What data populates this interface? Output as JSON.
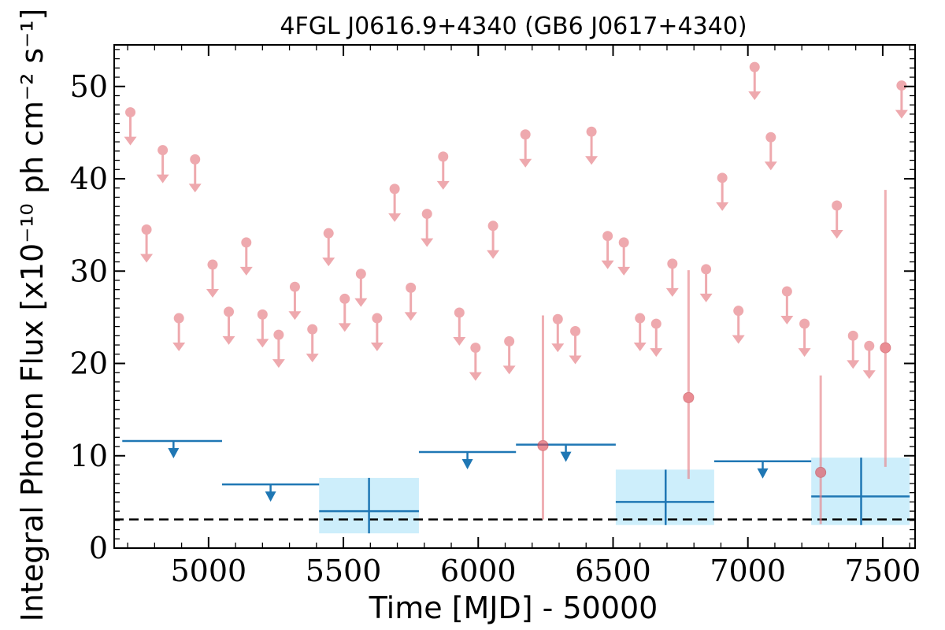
{
  "chart_data": {
    "type": "scatter",
    "title": "4FGL J0616.9+4340 (GB6 J0617+4340)",
    "xlabel": "Time [MJD] - 50000",
    "ylabel": "Integral Photon Flux [x10⁻¹⁰ ph cm⁻² s⁻¹]",
    "xlim": [
      4650,
      7620
    ],
    "ylim": [
      0,
      54.5
    ],
    "x_ticks": [
      5000,
      5500,
      6000,
      6500,
      7000,
      7500
    ],
    "y_ticks": [
      0,
      10,
      20,
      30,
      40,
      50
    ],
    "grid": false,
    "reference_line": {
      "y": 3.1,
      "style": "dashed",
      "color": "#000000"
    },
    "colors": {
      "short_bins": "#e8858c",
      "long_bins": "#1f77b4",
      "band_fill": "#cdeefb"
    },
    "series": [
      {
        "style": "upper_limit",
        "color": "#e8858c",
        "points": [
          {
            "x": 4710,
            "y": 47.2
          },
          {
            "x": 4770,
            "y": 34.5
          },
          {
            "x": 4830,
            "y": 43.1
          },
          {
            "x": 4890,
            "y": 24.9
          },
          {
            "x": 4950,
            "y": 42.1
          },
          {
            "x": 5015,
            "y": 30.7
          },
          {
            "x": 5075,
            "y": 25.6
          },
          {
            "x": 5140,
            "y": 33.1
          },
          {
            "x": 5200,
            "y": 25.3
          },
          {
            "x": 5260,
            "y": 23.1
          },
          {
            "x": 5320,
            "y": 28.3
          },
          {
            "x": 5385,
            "y": 23.7
          },
          {
            "x": 5445,
            "y": 34.1
          },
          {
            "x": 5505,
            "y": 27.0
          },
          {
            "x": 5565,
            "y": 29.7
          },
          {
            "x": 5625,
            "y": 24.9
          },
          {
            "x": 5690,
            "y": 38.9
          },
          {
            "x": 5750,
            "y": 28.2
          },
          {
            "x": 5810,
            "y": 36.2
          },
          {
            "x": 5870,
            "y": 42.4
          },
          {
            "x": 5930,
            "y": 25.5
          },
          {
            "x": 5990,
            "y": 21.7
          },
          {
            "x": 6055,
            "y": 34.9
          },
          {
            "x": 6115,
            "y": 22.4
          },
          {
            "x": 6175,
            "y": 44.8
          },
          {
            "x": 6295,
            "y": 24.8
          },
          {
            "x": 6360,
            "y": 23.5
          },
          {
            "x": 6420,
            "y": 45.1
          },
          {
            "x": 6480,
            "y": 33.8
          },
          {
            "x": 6540,
            "y": 33.1
          },
          {
            "x": 6600,
            "y": 24.9
          },
          {
            "x": 6660,
            "y": 24.3
          },
          {
            "x": 6720,
            "y": 30.8
          },
          {
            "x": 6845,
            "y": 30.2
          },
          {
            "x": 6905,
            "y": 40.1
          },
          {
            "x": 6965,
            "y": 25.7
          },
          {
            "x": 7025,
            "y": 52.1
          },
          {
            "x": 7085,
            "y": 44.5
          },
          {
            "x": 7145,
            "y": 27.8
          },
          {
            "x": 7210,
            "y": 24.3
          },
          {
            "x": 7330,
            "y": 37.1
          },
          {
            "x": 7390,
            "y": 23.0
          },
          {
            "x": 7450,
            "y": 21.9
          },
          {
            "x": 7570,
            "y": 50.1
          }
        ]
      },
      {
        "style": "detection",
        "color": "#e8858c",
        "points": [
          {
            "x": 6240,
            "y": 11.1,
            "yerr_low": 3.1,
            "yerr_high": 25.2
          },
          {
            "x": 6780,
            "y": 16.3,
            "yerr_low": 7.5,
            "yerr_high": 30.1
          },
          {
            "x": 7270,
            "y": 8.2,
            "yerr_low": 2.6,
            "yerr_high": 18.7
          },
          {
            "x": 7510,
            "y": 21.7,
            "yerr_low": 8.8,
            "yerr_high": 38.8
          }
        ]
      },
      {
        "style": "upper_limit_bin",
        "color": "#1f77b4",
        "bins": [
          {
            "x_start": 4680,
            "x_end": 5050,
            "x": 4870,
            "y": 11.6
          },
          {
            "x_start": 5050,
            "x_end": 5410,
            "x": 5230,
            "y": 6.9
          },
          {
            "x_start": 5780,
            "x_end": 6140,
            "x": 5960,
            "y": 10.4
          },
          {
            "x_start": 6140,
            "x_end": 6510,
            "x": 6325,
            "y": 11.2
          },
          {
            "x_start": 6875,
            "x_end": 7235,
            "x": 7055,
            "y": 9.4
          }
        ]
      },
      {
        "style": "detection_bin",
        "color": "#1f77b4",
        "bins": [
          {
            "x_start": 5410,
            "x_end": 5780,
            "x": 5595,
            "y": 4.0,
            "y_low": 1.6,
            "y_high": 7.6
          },
          {
            "x_start": 6510,
            "x_end": 6875,
            "x": 6695,
            "y": 5.0,
            "y_low": 2.5,
            "y_high": 8.5
          },
          {
            "x_start": 7235,
            "x_end": 7600,
            "x": 7420,
            "y": 5.6,
            "y_low": 2.5,
            "y_high": 9.8
          }
        ]
      }
    ]
  }
}
